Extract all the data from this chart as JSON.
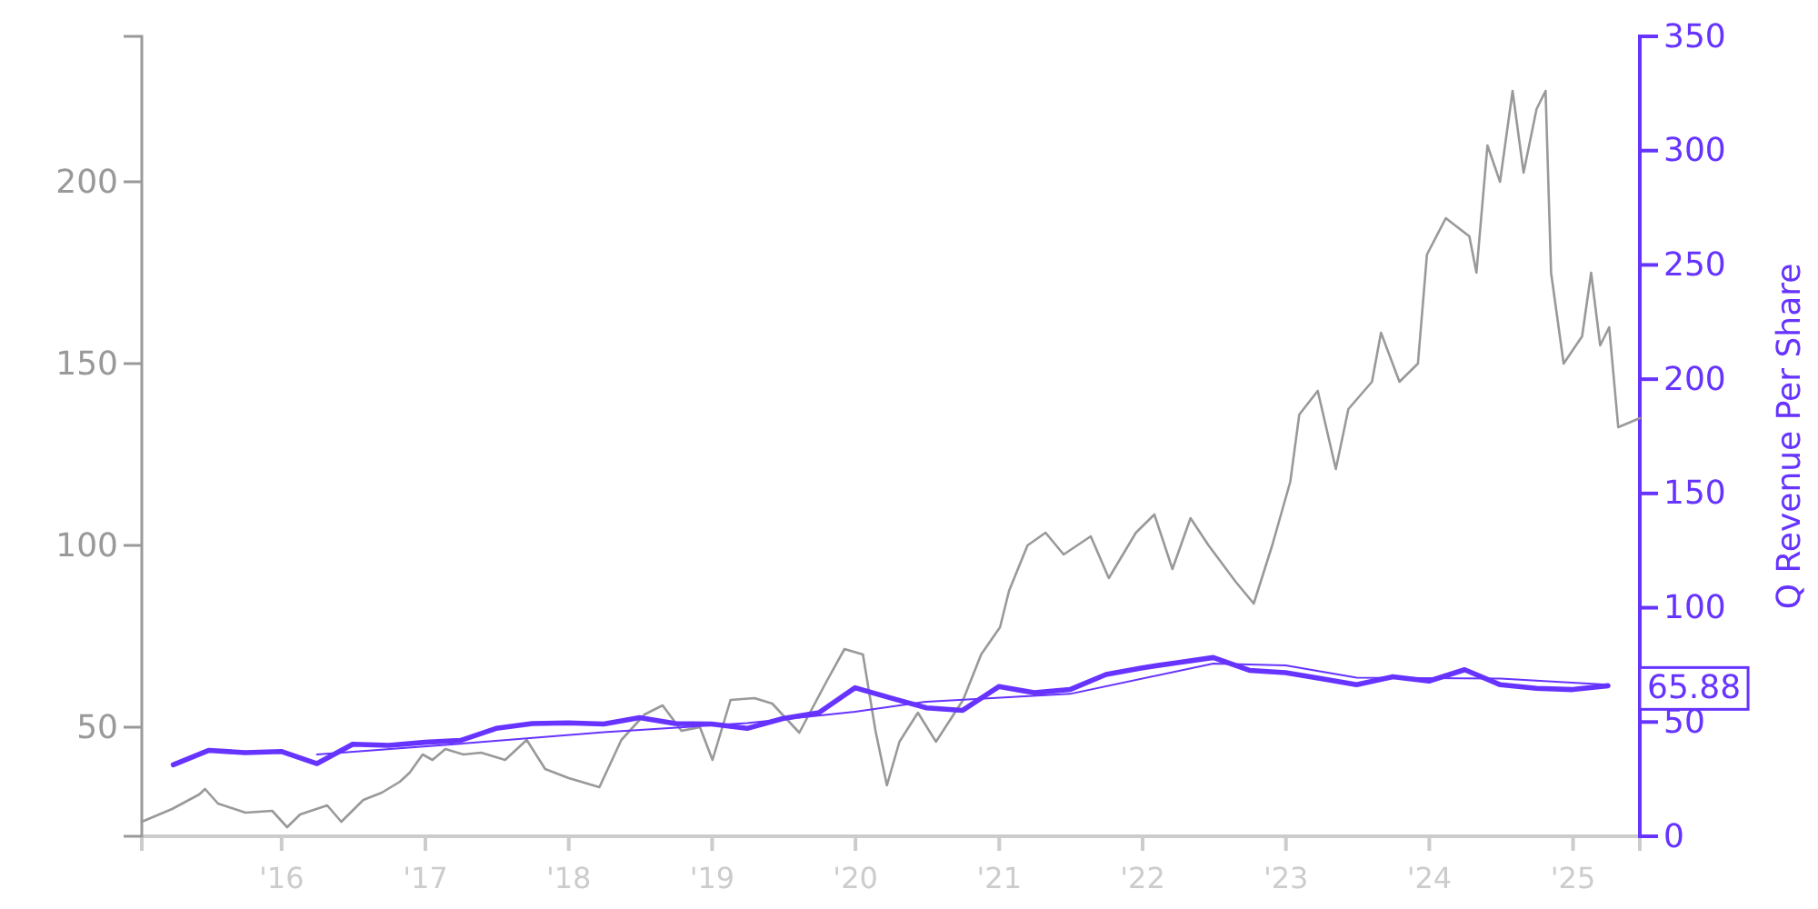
{
  "chart_data": {
    "type": "line",
    "y2label": "Q Revenue Per Share",
    "xlim": [
      "2015-01-10",
      "2025-06-20"
    ],
    "xticks": [
      {
        "value": "2016-01-01",
        "label": "'16"
      },
      {
        "value": "2017-01-01",
        "label": "'17"
      },
      {
        "value": "2018-01-01",
        "label": "'18"
      },
      {
        "value": "2019-01-01",
        "label": "'19"
      },
      {
        "value": "2020-01-01",
        "label": "'20"
      },
      {
        "value": "2021-01-01",
        "label": "'21"
      },
      {
        "value": "2022-01-01",
        "label": "'22"
      },
      {
        "value": "2023-01-01",
        "label": "'23"
      },
      {
        "value": "2024-01-01",
        "label": "'24"
      },
      {
        "value": "2025-01-01",
        "label": "'25"
      }
    ],
    "ylim": [
      20,
      240
    ],
    "yticks": [
      50,
      100,
      150,
      200
    ],
    "y2lim": [
      0,
      350
    ],
    "y2ticks": [
      0,
      50,
      100,
      150,
      200,
      250,
      300,
      350
    ],
    "grid": false,
    "marker": "none",
    "line_style": "solid",
    "annotations": [
      "65.88"
    ],
    "series": [
      {
        "color": "#999999",
        "x": [
          "2015-01-10",
          "2015-03-28",
          "2015-06-05",
          "2015-06-20",
          "2015-07-23",
          "2015-10-01",
          "2015-12-08",
          "2016-01-15",
          "2016-02-17",
          "2016-04-26",
          "2016-06-01",
          "2016-07-27",
          "2016-09-12",
          "2016-10-28",
          "2016-11-22",
          "2016-12-25",
          "2017-01-19",
          "2017-02-21",
          "2017-04-08",
          "2017-05-23",
          "2017-07-23",
          "2017-09-16",
          "2017-11-02",
          "2018-01-01",
          "2018-03-20",
          "2018-05-15",
          "2018-07-13",
          "2018-08-28",
          "2018-10-15",
          "2018-12-01",
          "2019-01-02",
          "2019-02-17",
          "2019-04-19",
          "2019-06-03",
          "2019-08-11",
          "2019-10-19",
          "2019-12-04",
          "2020-01-20",
          "2020-02-21",
          "2020-03-21",
          "2020-04-22",
          "2020-06-08",
          "2020-07-24",
          "2020-10-01",
          "2020-11-16",
          "2021-01-03",
          "2021-01-26",
          "2021-03-14",
          "2021-04-29",
          "2021-06-14",
          "2021-08-22",
          "2021-10-07",
          "2021-12-15",
          "2022-01-31",
          "2022-03-18",
          "2022-05-03",
          "2022-06-18",
          "2022-08-26",
          "2022-10-11",
          "2022-11-27",
          "2023-01-12",
          "2023-02-04",
          "2023-03-23",
          "2023-05-08",
          "2023-06-09",
          "2023-08-08",
          "2023-08-31",
          "2023-10-17",
          "2023-12-03",
          "2023-12-26",
          "2024-02-12",
          "2024-04-12",
          "2024-04-30",
          "2024-05-28",
          "2024-06-29",
          "2024-07-31",
          "2024-08-28",
          "2024-09-30",
          "2024-10-23",
          "2024-11-06",
          "2024-12-08",
          "2025-01-24",
          "2025-02-16",
          "2025-03-11",
          "2025-04-03",
          "2025-04-26",
          "2025-06-20"
        ],
        "values": [
          24,
          27.5,
          31.5,
          33,
          29,
          26.5,
          27,
          22.5,
          26,
          28.5,
          24,
          30,
          32,
          35,
          37.5,
          42.5,
          41,
          44,
          42.5,
          43,
          41,
          46.5,
          38.5,
          36,
          33.5,
          46.5,
          53.5,
          56,
          49,
          50,
          41,
          57.5,
          58,
          56.5,
          48.5,
          62.5,
          71.5,
          70,
          49,
          34,
          46,
          54,
          46,
          57.5,
          70,
          77.5,
          87.5,
          100,
          103.5,
          97.5,
          102.5,
          91,
          103.5,
          108.5,
          93.5,
          107.5,
          100,
          90,
          84,
          100,
          117.5,
          136,
          142.5,
          121,
          137.5,
          145,
          158.5,
          145,
          150,
          180,
          190,
          185,
          175,
          210,
          200,
          225,
          202.5,
          220,
          225,
          175,
          150,
          157.5,
          175,
          155,
          160,
          132.5,
          135
        ]
      },
      {
        "color": "#6633ff",
        "axis": "y2",
        "x": [
          "2015-03-31",
          "2015-06-30",
          "2015-09-30",
          "2015-12-31",
          "2016-03-31",
          "2016-06-30",
          "2016-09-30",
          "2016-12-31",
          "2017-03-31",
          "2017-06-30",
          "2017-09-30",
          "2017-12-31",
          "2018-03-31",
          "2018-06-30",
          "2018-09-30",
          "2018-12-31",
          "2019-03-31",
          "2019-06-30",
          "2019-09-30",
          "2019-12-31",
          "2020-03-31",
          "2020-06-30",
          "2020-09-30",
          "2020-12-31",
          "2021-03-31",
          "2021-06-30",
          "2021-09-30",
          "2021-12-31",
          "2022-03-31",
          "2022-06-30",
          "2022-09-30",
          "2022-12-31",
          "2023-03-31",
          "2023-06-30",
          "2023-09-30",
          "2023-12-31",
          "2024-03-31",
          "2024-06-30",
          "2024-09-30",
          "2024-12-31",
          "2025-03-31"
        ],
        "values": [
          31.3,
          37.6,
          36.6,
          37.1,
          31.8,
          40.3,
          39.8,
          41.1,
          41.9,
          47.2,
          49.3,
          49.6,
          49.1,
          51.9,
          49.3,
          49.1,
          47.2,
          51.5,
          54.1,
          65,
          60.5,
          56.2,
          55.1,
          65.5,
          62.8,
          64.2,
          70.8,
          73.7,
          76,
          78.2,
          72.6,
          71.6,
          69,
          66.3,
          69.8,
          67.9,
          72.9,
          66.3,
          64.7,
          64.2,
          65.88
        ]
      },
      {
        "color": "#6633ff",
        "axis": "y2",
        "x": [
          "2016-03-31",
          "2017-03-31",
          "2018-03-31",
          "2019-03-31",
          "2019-12-31",
          "2020-06-30",
          "2021-06-30",
          "2022-06-30",
          "2022-12-31",
          "2023-06-30",
          "2024-06-30",
          "2025-03-31"
        ],
        "values": [
          35.8,
          40.5,
          45.5,
          49.5,
          54.5,
          58.9,
          62.3,
          75.6,
          74.8,
          69.4,
          69,
          66.3
        ]
      }
    ]
  }
}
